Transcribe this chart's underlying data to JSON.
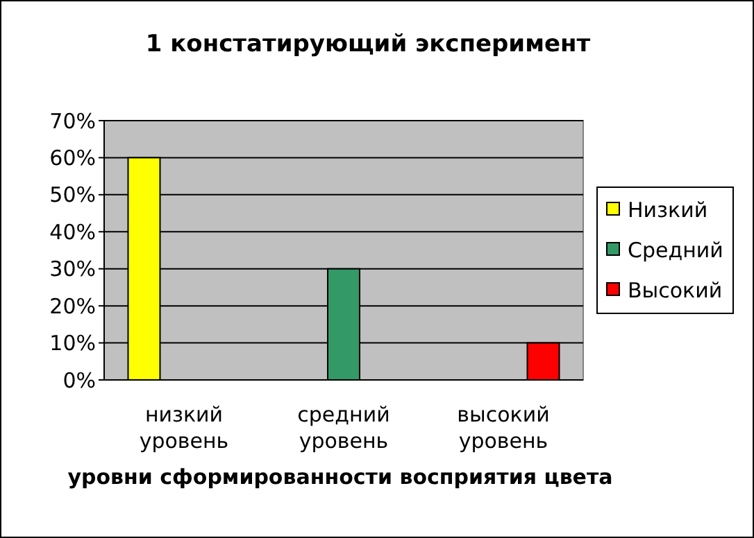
{
  "chart_data": {
    "type": "bar",
    "title": "1 констатирующий эксперимент",
    "xlabel": "уровни сформированности восприятия цвета",
    "categories": [
      "низкий уровень",
      "средний уровень",
      "высокий уровень"
    ],
    "series": [
      {
        "name": "Низкий",
        "color": "#ffff00",
        "values": [
          60,
          null,
          null
        ]
      },
      {
        "name": "Средний",
        "color": "#339966",
        "values": [
          null,
          30,
          null
        ]
      },
      {
        "name": "Высокий",
        "color": "#ff0000",
        "values": [
          null,
          null,
          10
        ]
      }
    ],
    "ylim": [
      0,
      70
    ],
    "yticks": [
      {
        "value": 0,
        "label": "0%"
      },
      {
        "value": 10,
        "label": "10%"
      },
      {
        "value": 20,
        "label": "20%"
      },
      {
        "value": 30,
        "label": "30%"
      },
      {
        "value": 40,
        "label": "40%"
      },
      {
        "value": 50,
        "label": "50%"
      },
      {
        "value": 60,
        "label": "60%"
      },
      {
        "value": 70,
        "label": "70%"
      }
    ],
    "grid": "y",
    "legend": "right"
  }
}
